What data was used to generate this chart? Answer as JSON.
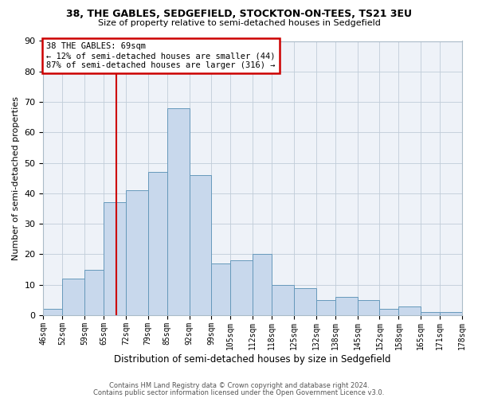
{
  "title": "38, THE GABLES, SEDGEFIELD, STOCKTON-ON-TEES, TS21 3EU",
  "subtitle": "Size of property relative to semi-detached houses in Sedgefield",
  "xlabel": "Distribution of semi-detached houses by size in Sedgefield",
  "ylabel": "Number of semi-detached properties",
  "bin_edges": [
    46,
    52,
    59,
    65,
    72,
    79,
    85,
    92,
    99,
    105,
    112,
    118,
    125,
    132,
    138,
    145,
    152,
    158,
    165,
    171,
    178
  ],
  "heights": [
    2,
    12,
    15,
    37,
    41,
    47,
    68,
    46,
    17,
    18,
    20,
    10,
    9,
    5,
    6,
    5,
    2,
    3,
    1,
    1
  ],
  "tick_labels": [
    "46sqm",
    "52sqm",
    "59sqm",
    "65sqm",
    "72sqm",
    "79sqm",
    "85sqm",
    "92sqm",
    "99sqm",
    "105sqm",
    "112sqm",
    "118sqm",
    "125sqm",
    "132sqm",
    "138sqm",
    "145sqm",
    "152sqm",
    "158sqm",
    "165sqm",
    "171sqm",
    "178sqm"
  ],
  "bar_color": "#c8d8ec",
  "bar_edge_color": "#6699bb",
  "vline_x": 69,
  "vline_color": "#cc0000",
  "annotation_title": "38 THE GABLES: 69sqm",
  "annotation_line1": "← 12% of semi-detached houses are smaller (44)",
  "annotation_line2": "87% of semi-detached houses are larger (316) →",
  "annotation_box_color": "#cc0000",
  "ylim": [
    0,
    90
  ],
  "yticks": [
    0,
    10,
    20,
    30,
    40,
    50,
    60,
    70,
    80,
    90
  ],
  "footer1": "Contains HM Land Registry data © Crown copyright and database right 2024.",
  "footer2": "Contains public sector information licensed under the Open Government Licence v3.0.",
  "bg_color": "#eef2f8",
  "grid_color": "#c0ccd8"
}
